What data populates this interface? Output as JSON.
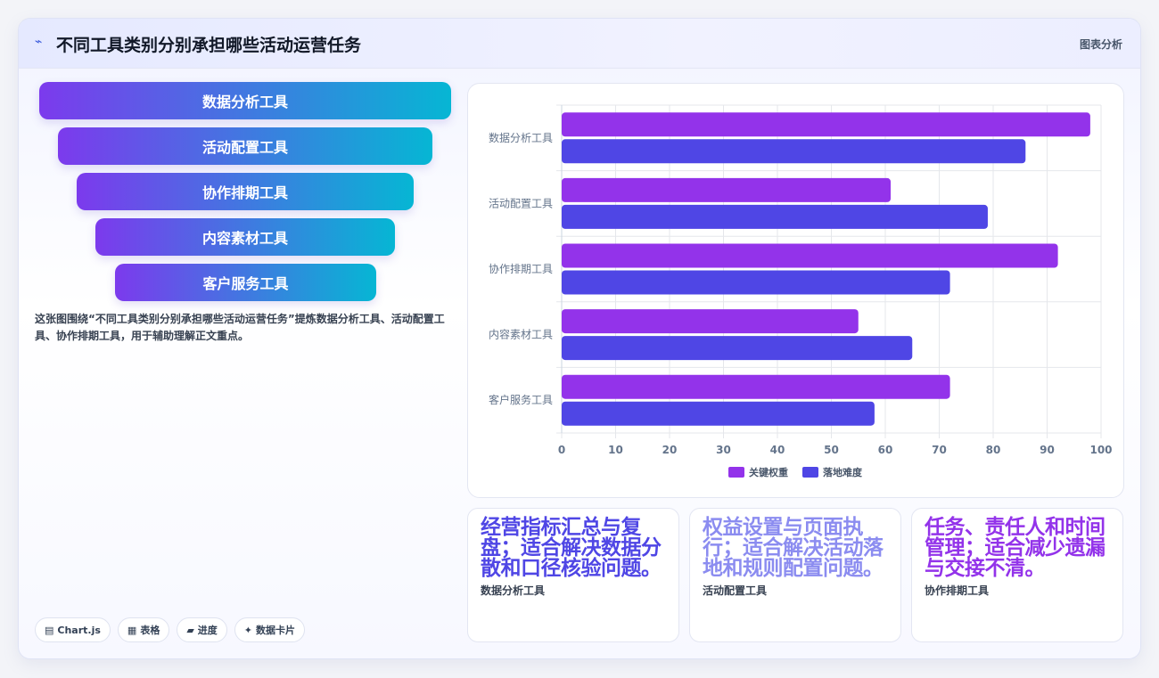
{
  "header": {
    "logo_icon": "sparkle-icon",
    "title": "不同工具类别分别承担哪些活动运营任务",
    "tag": "图表分析"
  },
  "funnel": {
    "items": [
      "数据分析工具",
      "活动配置工具",
      "协作排期工具",
      "内容素材工具",
      "客户服务工具"
    ]
  },
  "description": "这张图围绕“不同工具类别分别承担哪些活动运营任务”提炼数据分析工具、活动配置工具、协作排期工具，用于辅助理解正文重点。",
  "chips": [
    {
      "icon": "▤",
      "label": "Chart.js"
    },
    {
      "icon": "▦",
      "label": "表格"
    },
    {
      "icon": "▰",
      "label": "进度"
    },
    {
      "icon": "✦",
      "label": "数据卡片"
    }
  ],
  "cards": [
    {
      "text": "经营指标汇总与复盘；适合解决数据分散和口径核验问题。",
      "label": "数据分析工具",
      "color": "#4f46e5"
    },
    {
      "text": "权益设置与页面执行；适合解决活动落地和规则配置问题。",
      "label": "活动配置工具",
      "color": "#8b8cf0"
    },
    {
      "text": "任务、责任人和时间管理；适合减少遗漏与交接不清。",
      "label": "协作排期工具",
      "color": "#9333ea"
    }
  ],
  "chart_data": {
    "type": "bar",
    "orientation": "horizontal",
    "categories": [
      "数据分析工具",
      "活动配置工具",
      "协作排期工具",
      "内容素材工具",
      "客户服务工具"
    ],
    "series": [
      {
        "name": "关键权重",
        "values": [
          98,
          61,
          92,
          55,
          72
        ],
        "color": "#9333ea"
      },
      {
        "name": "落地难度",
        "values": [
          86,
          79,
          72,
          65,
          58
        ],
        "color": "#4f46e5"
      }
    ],
    "xlim": [
      0,
      100
    ],
    "xticks": [
      "0",
      "10",
      "20",
      "30",
      "40",
      "50",
      "60",
      "70",
      "80",
      "90",
      "100"
    ],
    "grid": true,
    "legend": "bottom"
  }
}
